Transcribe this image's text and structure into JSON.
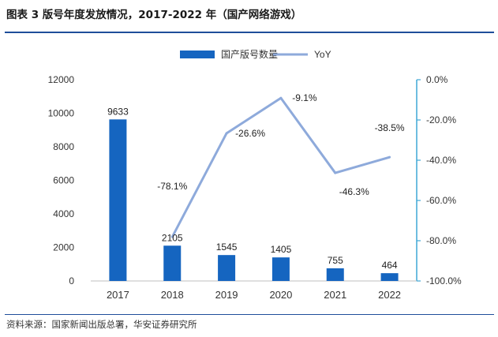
{
  "header": {
    "title": "图表 3 版号年度发放情况，2017-2022 年（国产网络游戏）"
  },
  "footer": {
    "source": "资料来源：国家新闻出版总署，华安证券研究所"
  },
  "colors": {
    "bar": "#1565c0",
    "line": "#8eaadb",
    "axis_right": "#3fa7d6",
    "rule": "#1f4e9a"
  },
  "chart_data": {
    "type": "bar",
    "categories": [
      "2017",
      "2018",
      "2019",
      "2020",
      "2021",
      "2022"
    ],
    "series": [
      {
        "name": "国产版号数量",
        "type": "bar",
        "axis": "left",
        "values": [
          9633,
          2105,
          1545,
          1405,
          755,
          464
        ],
        "labels": [
          "9633",
          "2105",
          "1545",
          "1405",
          "755",
          "464"
        ]
      },
      {
        "name": "YoY",
        "type": "line",
        "axis": "right",
        "values": [
          null,
          -78.1,
          -26.6,
          -9.1,
          -46.3,
          -38.5
        ],
        "labels": [
          "",
          "-78.1%",
          "-26.6%",
          "-9.1%",
          "-46.3%",
          "-38.5%"
        ]
      }
    ],
    "y_left": {
      "min": 0,
      "max": 12000,
      "ticks": [
        "0",
        "2000",
        "4000",
        "6000",
        "8000",
        "10000",
        "12000"
      ]
    },
    "y_right": {
      "min": -100,
      "max": 0,
      "ticks": [
        "-100.0%",
        "-80.0%",
        "-60.0%",
        "-40.0%",
        "-20.0%",
        "0.0%"
      ]
    },
    "legend_position": "top-center",
    "grid": false
  }
}
